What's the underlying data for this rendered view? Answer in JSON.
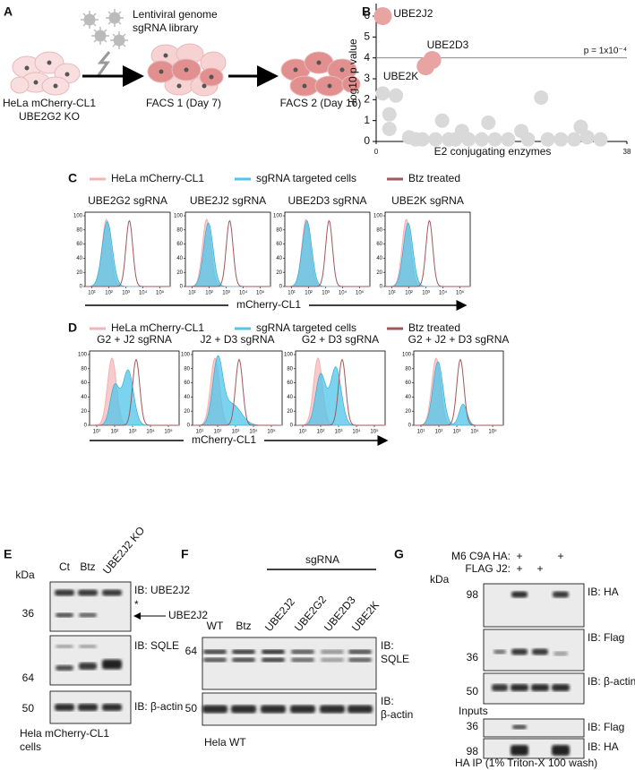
{
  "panel_a": {
    "letter": "A",
    "library": [
      "Lentiviral genome",
      "sgRNA library"
    ],
    "cells": [
      "HeLa mCherry-CL1",
      "UBE2G2 KO"
    ],
    "facs1": "FACS 1 (Day 7)",
    "facs2": "FACS 2 (Day 16)"
  },
  "chart_data": {
    "type": "scatter",
    "letter": "B",
    "ylabel": "-log10 p value",
    "xlabel": "E2 conjugating enzymes",
    "xlim": [
      0,
      38
    ],
    "xticks": [
      0,
      38
    ],
    "ylim": [
      0,
      6.6
    ],
    "yticks": [
      0,
      1,
      2,
      3,
      4,
      5,
      6
    ],
    "threshold": {
      "value": 4,
      "label": "p = 1x10⁻⁴"
    },
    "color": "#d9d9d9",
    "highlight_color": "#e8a3a3",
    "x": [
      1,
      2,
      3,
      2,
      5,
      6,
      7,
      9,
      10,
      11,
      12,
      13,
      14,
      16,
      17,
      18,
      20,
      22,
      23,
      25,
      26,
      28,
      30,
      31,
      32,
      34,
      1,
      7.5,
      8.5
    ],
    "values": [
      2.3,
      1.3,
      2.2,
      0.6,
      0.2,
      0.1,
      0.1,
      0.1,
      1.0,
      0.1,
      0.1,
      0.5,
      0.1,
      0.1,
      0.9,
      0.1,
      0.1,
      0.5,
      0.1,
      2.1,
      0.1,
      0.1,
      0.1,
      0.7,
      0.2,
      0.1,
      6.0,
      3.6,
      3.9
    ],
    "labels": [
      null,
      null,
      null,
      null,
      null,
      null,
      null,
      null,
      null,
      null,
      null,
      null,
      null,
      null,
      null,
      null,
      null,
      null,
      null,
      null,
      null,
      null,
      null,
      null,
      null,
      null,
      "UBE2J2",
      "UBE2K",
      "UBE2D3"
    ]
  },
  "histogram_axis": {
    "yticks": [
      0,
      20,
      40,
      60,
      80,
      100
    ],
    "xticks": [
      "10¹",
      "10²",
      "10³",
      "10⁴",
      "10⁵"
    ]
  },
  "legend": [
    {
      "name": "HeLa mCherry-CL1",
      "color": "#f4b3b6"
    },
    {
      "name": "sgRNA targeted cells",
      "color": "#4fc6ea"
    },
    {
      "name": "Btz treated",
      "color": "#a3575a"
    }
  ],
  "panel_c": {
    "letter": "C",
    "titles": [
      "UBE2G2 sgRNA",
      "UBE2J2 sgRNA",
      "UBE2D3 sgRNA",
      "UBE2K sgRNA"
    ],
    "xlabel": "mCherry-CL1"
  },
  "panel_d": {
    "letter": "D",
    "titles": [
      "G2 + J2 sgRNA",
      "J2 + D3 sgRNA",
      "G2 + D3 sgRNA",
      "G2 + J2 + D3 sgRNA"
    ],
    "xlabel": "mCherry-CL1"
  },
  "panel_e": {
    "letter": "E",
    "kda": "kDa",
    "lanes": [
      "Ct",
      "Btz",
      "UBE2J2 KO"
    ],
    "markers": [
      "36",
      "64",
      "50"
    ],
    "labels": [
      "IB: UBE2J2",
      "*",
      "UBE2J2",
      "IB: SQLE",
      "IB: β-actin"
    ],
    "caption": [
      "Hela mCherry-CL1",
      "cells"
    ]
  },
  "panel_f": {
    "letter": "F",
    "group": "sgRNA",
    "lanes": [
      "WT",
      "Btz",
      "UBE2J2",
      "UBE2G2",
      "UBE2D3",
      "UBE2K"
    ],
    "markers": [
      "64",
      "50"
    ],
    "labels": [
      [
        "IB:",
        "SQLE"
      ],
      [
        "IB:",
        "β-actin"
      ]
    ],
    "caption": "Hela WT"
  },
  "panel_g": {
    "letter": "G",
    "conditions": [
      "M6 C9A HA:",
      "FLAG J2:"
    ],
    "ha_signs": [
      "+",
      "+"
    ],
    "flag_signs": [
      "+",
      "+"
    ],
    "kda": "kDa",
    "markers": [
      "98",
      "36",
      "50",
      "36",
      "98"
    ],
    "labels": [
      "IB: HA",
      "IB: Flag",
      "IB: β-actin",
      "IB: Flag",
      "IB: HA"
    ],
    "inputs": "Inputs",
    "caption": "HA IP (1% Triton-X 100 wash)"
  }
}
